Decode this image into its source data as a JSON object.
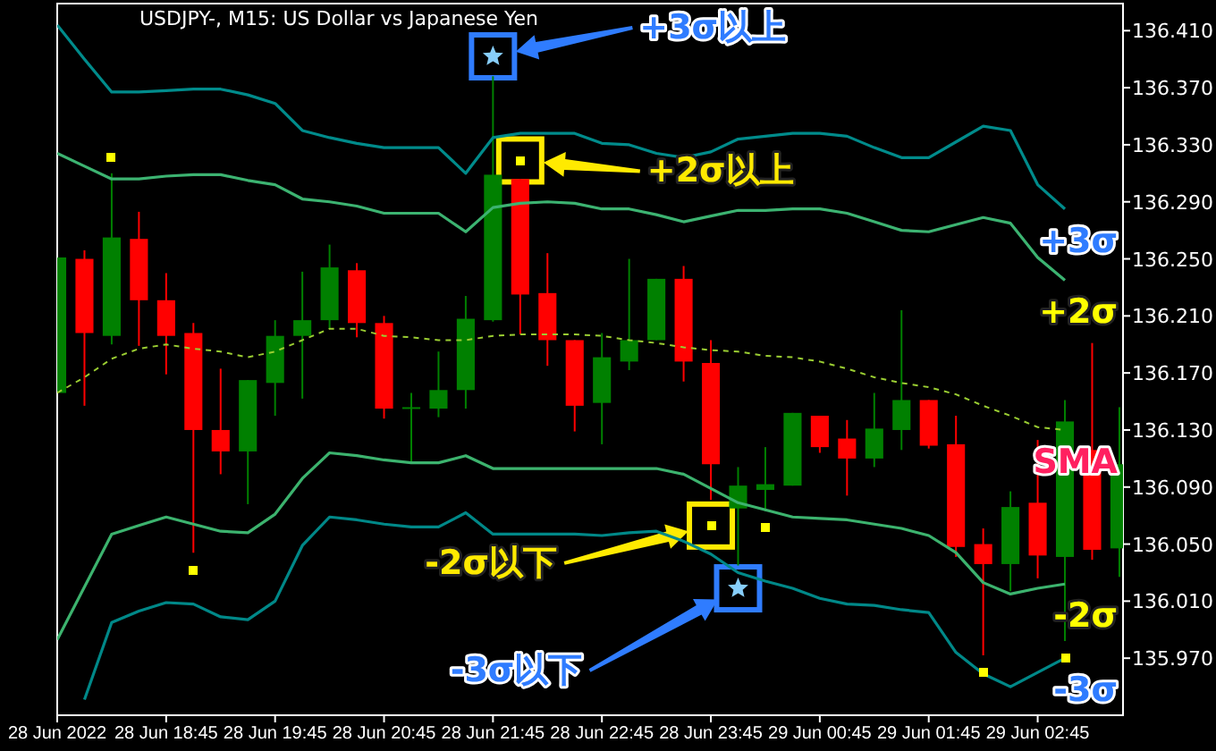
{
  "chart_data": {
    "type": "candlestick",
    "title": "USDJPY-, M15:  US Dollar vs Japanese Yen",
    "x": [
      "2022-06-28T17:45",
      "2022-06-28T18:00",
      "2022-06-28T18:15",
      "2022-06-28T18:30",
      "2022-06-28T18:45",
      "2022-06-28T19:00",
      "2022-06-28T19:15",
      "2022-06-28T19:30",
      "2022-06-28T19:45",
      "2022-06-28T20:00",
      "2022-06-28T20:15",
      "2022-06-28T20:30",
      "2022-06-28T20:45",
      "2022-06-28T21:00",
      "2022-06-28T21:15",
      "2022-06-28T21:30",
      "2022-06-28T21:45",
      "2022-06-28T22:00",
      "2022-06-28T22:15",
      "2022-06-28T22:30",
      "2022-06-28T22:45",
      "2022-06-28T23:00",
      "2022-06-28T23:15",
      "2022-06-28T23:30",
      "2022-06-28T23:45",
      "2022-06-29T00:00",
      "2022-06-29T00:15",
      "2022-06-29T00:30",
      "2022-06-29T00:45",
      "2022-06-29T01:00",
      "2022-06-29T01:15",
      "2022-06-29T01:30",
      "2022-06-29T01:45",
      "2022-06-29T02:00",
      "2022-06-29T02:15",
      "2022-06-29T02:30",
      "2022-06-29T02:45",
      "2022-06-29T03:00",
      "2022-06-29T03:15",
      "2022-06-29T03:30"
    ],
    "ohlc": [
      [
        136.156,
        136.251,
        136.156,
        136.251
      ],
      [
        136.25,
        136.256,
        136.147,
        136.198
      ],
      [
        136.196,
        136.31,
        136.19,
        136.265
      ],
      [
        136.264,
        136.283,
        136.189,
        136.221
      ],
      [
        136.221,
        136.24,
        136.169,
        136.196
      ],
      [
        136.198,
        136.205,
        136.044,
        136.13
      ],
      [
        136.13,
        136.173,
        136.099,
        136.115
      ],
      [
        136.115,
        136.165,
        136.078,
        136.165
      ],
      [
        136.163,
        136.207,
        136.14,
        136.196
      ],
      [
        136.196,
        136.241,
        136.152,
        136.207
      ],
      [
        136.207,
        136.26,
        136.201,
        136.244
      ],
      [
        136.242,
        136.247,
        136.195,
        136.205
      ],
      [
        136.205,
        136.21,
        136.138,
        136.145
      ],
      [
        136.146,
        136.156,
        136.107,
        136.146
      ],
      [
        136.145,
        136.185,
        136.139,
        136.158
      ],
      [
        136.158,
        136.224,
        136.145,
        136.208
      ],
      [
        136.207,
        136.378,
        136.206,
        136.309
      ],
      [
        136.306,
        136.306,
        136.197,
        136.225
      ],
      [
        136.226,
        136.254,
        136.175,
        136.193
      ],
      [
        136.193,
        136.193,
        136.129,
        136.147
      ],
      [
        136.149,
        136.198,
        136.12,
        136.181
      ],
      [
        136.178,
        136.25,
        136.172,
        136.193
      ],
      [
        136.193,
        136.236,
        136.193,
        136.236
      ],
      [
        136.236,
        136.245,
        136.164,
        136.178
      ],
      [
        136.177,
        136.193,
        136.081,
        136.106
      ],
      [
        136.075,
        136.104,
        136.035,
        136.091
      ],
      [
        136.088,
        136.118,
        136.073,
        136.092
      ],
      [
        136.091,
        136.142,
        136.091,
        136.142
      ],
      [
        136.14,
        136.14,
        136.114,
        136.118
      ],
      [
        136.124,
        136.137,
        136.084,
        136.11
      ],
      [
        136.11,
        136.156,
        136.104,
        136.131
      ],
      [
        136.13,
        136.214,
        136.116,
        136.151
      ],
      [
        136.151,
        136.151,
        136.117,
        136.119
      ],
      [
        136.12,
        136.14,
        136.041,
        136.048
      ],
      [
        136.05,
        136.061,
        135.972,
        136.036
      ],
      [
        136.036,
        136.087,
        136.017,
        136.076
      ],
      [
        136.079,
        136.123,
        136.026,
        136.042
      ],
      [
        136.041,
        136.151,
        135.982,
        136.136
      ],
      [
        136.116,
        136.191,
        136.039,
        136.046
      ],
      [
        136.047,
        136.146,
        136.027,
        136.106
      ]
    ],
    "colors": [
      "#008000",
      "#ff0000",
      "#008000",
      "#ff0000",
      "#ff0000",
      "#ff0000",
      "#ff0000",
      "#008000",
      "#008000",
      "#008000",
      "#008000",
      "#ff0000",
      "#ff0000",
      "#008000",
      "#008000",
      "#008000",
      "#008000",
      "#ff0000",
      "#ff0000",
      "#ff0000",
      "#008000",
      "#008000",
      "#008000",
      "#ff0000",
      "#ff0000",
      "#008000",
      "#008000",
      "#008000",
      "#ff0000",
      "#ff0000",
      "#008000",
      "#008000",
      "#ff0000",
      "#ff0000",
      "#ff0000",
      "#008000",
      "#ff0000",
      "#008000",
      "#ff0000",
      "#008000"
    ],
    "series": [
      {
        "name": "+3σ",
        "type": "line",
        "color": "#008b8b",
        "values": [
          136.414,
          136.39,
          136.367,
          136.367,
          136.368,
          136.369,
          136.369,
          136.365,
          136.359,
          136.34,
          136.335,
          136.331,
          136.328,
          136.328,
          136.328,
          136.31,
          136.335,
          136.338,
          136.338,
          136.338,
          136.331,
          136.33,
          136.324,
          136.321,
          136.325,
          136.334,
          136.336,
          136.338,
          136.338,
          136.336,
          136.328,
          136.321,
          136.321,
          136.332,
          136.343,
          136.34,
          136.302,
          136.285,
          null,
          null
        ]
      },
      {
        "name": "+2σ",
        "type": "line",
        "color": "#3cb371",
        "values": [
          136.324,
          136.315,
          136.306,
          136.306,
          136.308,
          136.309,
          136.309,
          136.305,
          136.302,
          136.292,
          136.29,
          136.287,
          136.282,
          136.282,
          136.282,
          136.269,
          136.286,
          136.289,
          136.29,
          136.289,
          136.285,
          136.285,
          136.281,
          136.276,
          136.28,
          136.284,
          136.284,
          136.285,
          136.285,
          136.282,
          136.276,
          136.27,
          136.269,
          136.274,
          136.279,
          136.275,
          136.251,
          136.235,
          null,
          null
        ]
      },
      {
        "name": "SMA",
        "type": "line",
        "color": "#9acd32",
        "line_style": "dashed",
        "values": [
          136.156,
          136.167,
          136.18,
          136.187,
          136.19,
          136.187,
          136.185,
          136.181,
          136.185,
          136.193,
          136.201,
          136.201,
          136.196,
          136.195,
          136.193,
          136.193,
          136.196,
          136.197,
          136.197,
          136.197,
          136.196,
          136.193,
          136.191,
          136.188,
          136.186,
          136.185,
          136.182,
          136.181,
          136.178,
          136.173,
          136.167,
          136.163,
          136.16,
          136.155,
          136.147,
          136.14,
          136.132,
          136.13,
          null,
          null
        ]
      },
      {
        "name": "-2σ",
        "type": "line",
        "color": "#3cb36e",
        "values": [
          135.983,
          136.02,
          136.057,
          136.063,
          136.069,
          136.064,
          136.059,
          136.058,
          136.071,
          136.096,
          136.114,
          136.112,
          136.109,
          136.107,
          136.107,
          136.112,
          136.103,
          136.103,
          136.103,
          136.103,
          136.103,
          136.103,
          136.103,
          136.099,
          136.089,
          136.079,
          136.074,
          136.069,
          136.068,
          136.067,
          136.064,
          136.061,
          136.056,
          136.044,
          136.023,
          136.015,
          136.019,
          136.022,
          null,
          null
        ]
      },
      {
        "name": "-3σ",
        "type": "line",
        "color": "#008888",
        "values": [
          null,
          135.941,
          135.995,
          136.003,
          136.009,
          136.008,
          135.999,
          135.997,
          136.01,
          136.049,
          136.069,
          136.067,
          136.064,
          136.062,
          136.062,
          136.072,
          136.057,
          136.057,
          136.057,
          136.057,
          136.056,
          136.058,
          136.059,
          136.052,
          136.043,
          136.03,
          136.024,
          136.019,
          136.012,
          136.008,
          136.007,
          136.004,
          136.002,
          135.974,
          135.959,
          135.95,
          135.96,
          135.97,
          null,
          null
        ]
      },
      {
        "type": "scatter",
        "marker": "square",
        "color": "#ffff00",
        "x": [
          "2022-06-28T18:15",
          "2022-06-28T19:00",
          "2022-06-28T22:00",
          "2022-06-28T23:45",
          "2022-06-29T00:15",
          "2022-06-29T02:15",
          "2022-06-29T03:00"
        ],
        "values": [
          136.321,
          136.032,
          136.319,
          136.063,
          136.062,
          135.96,
          135.97
        ]
      },
      {
        "type": "scatter",
        "marker": "star",
        "color": "#87cefa",
        "x": [
          "2022-06-28T21:45",
          "2022-06-29T00:00"
        ],
        "values": [
          136.392,
          136.019
        ]
      }
    ],
    "xlim": [
      "2022-06-28T17:45",
      "2022-06-29T03:32"
    ],
    "xticks": [
      {
        "value": "2022-06-28T17:45",
        "label": "28 Jun 2022"
      },
      {
        "value": "2022-06-28T18:45",
        "label": "28 Jun 18:45"
      },
      {
        "value": "2022-06-28T19:45",
        "label": "28 Jun 19:45"
      },
      {
        "value": "2022-06-28T20:45",
        "label": "28 Jun 20:45"
      },
      {
        "value": "2022-06-28T21:45",
        "label": "28 Jun 21:45"
      },
      {
        "value": "2022-06-28T22:45",
        "label": "28 Jun 22:45"
      },
      {
        "value": "2022-06-28T23:45",
        "label": "28 Jun 23:45"
      },
      {
        "value": "2022-06-29T00:45",
        "label": "29 Jun 00:45"
      },
      {
        "value": "2022-06-29T01:45",
        "label": "29 Jun 01:45"
      },
      {
        "value": "2022-06-29T02:45",
        "label": "29 Jun 02:45"
      }
    ],
    "ylim": [
      135.93,
      136.429
    ],
    "yticks": [
      {
        "value": 135.97,
        "label": "135.970"
      },
      {
        "value": 136.01,
        "label": "136.010"
      },
      {
        "value": 136.05,
        "label": "136.050"
      },
      {
        "value": 136.09,
        "label": "136.090"
      },
      {
        "value": 136.13,
        "label": "136.130"
      },
      {
        "value": 136.17,
        "label": "136.170"
      },
      {
        "value": 136.21,
        "label": "136.210"
      },
      {
        "value": 136.25,
        "label": "136.250"
      },
      {
        "value": 136.29,
        "label": "136.290"
      },
      {
        "value": 136.33,
        "label": "136.330"
      },
      {
        "value": 136.37,
        "label": "136.370"
      },
      {
        "value": 136.41,
        "label": "136.410"
      }
    ],
    "annotations": [
      "+3σ以上",
      "+2σ以上",
      "-2σ以下",
      "-3σ以下"
    ]
  }
}
